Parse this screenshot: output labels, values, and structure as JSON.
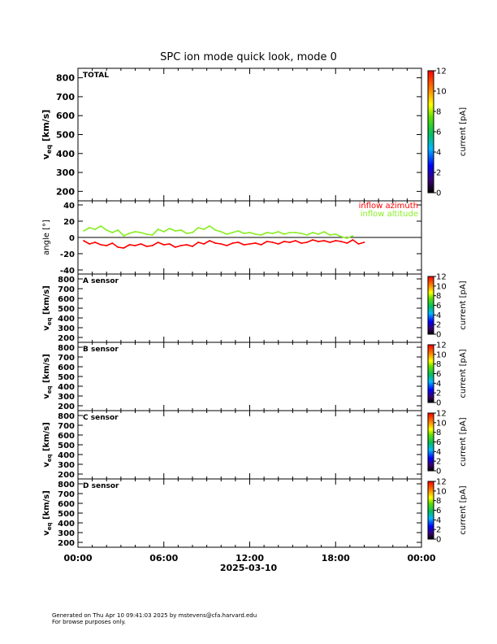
{
  "title": "SPC ion mode quick look, mode 0",
  "footer": {
    "line1": "Generated on Thu Apr 10 09:41:03 2025 by mstevens@cfa.harvard.edu",
    "line2": "For browse purposes only."
  },
  "colorbar": {
    "label": "current [pA]",
    "ticks_big": [
      "0",
      "2",
      "4",
      "6",
      "8",
      "10",
      "12"
    ],
    "ticks_small": [
      "0",
      "2",
      "4",
      "6",
      "8",
      "10",
      "12"
    ],
    "range": [
      0,
      12
    ]
  },
  "x_axis": {
    "date": "2025-03-10",
    "ticks": [
      "00:00",
      "06:00",
      "12:00",
      "18:00",
      "00:00"
    ]
  },
  "legend": {
    "azimuth": "inflow azimuth",
    "altitude": "inflow altitude",
    "azimuth_color": "#ff0000",
    "altitude_color": "#88ee22"
  },
  "chart_data": [
    {
      "type": "heatmap",
      "panel": "TOTAL",
      "label": "TOTAL",
      "ylabel": "v_eq [km/s]",
      "ylim": [
        150,
        850
      ],
      "yticks": [
        "200",
        "300",
        "400",
        "500",
        "600",
        "700",
        "800"
      ],
      "xlim_hours": [
        0,
        24
      ],
      "values": []
    },
    {
      "type": "scatter",
      "panel": "angle",
      "ylabel": "angle [°]",
      "ylim": [
        -45,
        45
      ],
      "yticks": [
        "-40",
        "-20",
        "0",
        "20",
        "40"
      ],
      "xlim_hours": [
        0,
        24
      ],
      "series": [
        {
          "name": "inflow altitude",
          "color": "#88ee22",
          "x": [
            0.4,
            0.8,
            1.2,
            1.6,
            2.0,
            2.4,
            2.8,
            3.2,
            3.6,
            4.0,
            4.4,
            4.8,
            5.2,
            5.6,
            6.0,
            6.4,
            6.8,
            7.2,
            7.6,
            8.0,
            8.4,
            8.8,
            9.2,
            9.6,
            10.0,
            10.4,
            10.8,
            11.2,
            11.6,
            12.0,
            12.4,
            12.8,
            13.2,
            13.6,
            14.0,
            14.4,
            14.8,
            15.2,
            15.6,
            16.0,
            16.4,
            16.8,
            17.2,
            17.6,
            18.0,
            18.4,
            18.8,
            19.2
          ],
          "values": [
            8,
            12,
            10,
            14,
            9,
            6,
            9,
            2,
            5,
            7,
            6,
            4,
            3,
            10,
            7,
            11,
            8,
            9,
            5,
            6,
            12,
            10,
            14,
            9,
            7,
            4,
            6,
            8,
            5,
            6,
            4,
            3,
            6,
            5,
            7,
            4,
            6,
            6,
            5,
            3,
            6,
            4,
            7,
            3,
            4,
            1,
            -1,
            2
          ]
        },
        {
          "name": "inflow azimuth",
          "color": "#ff0000",
          "x": [
            0.4,
            0.8,
            1.2,
            1.6,
            2.0,
            2.4,
            2.8,
            3.2,
            3.6,
            4.0,
            4.4,
            4.8,
            5.2,
            5.6,
            6.0,
            6.4,
            6.8,
            7.2,
            7.6,
            8.0,
            8.4,
            8.8,
            9.2,
            9.6,
            10.0,
            10.4,
            10.8,
            11.2,
            11.6,
            12.0,
            12.4,
            12.8,
            13.2,
            13.6,
            14.0,
            14.4,
            14.8,
            15.2,
            15.6,
            16.0,
            16.4,
            16.8,
            17.2,
            17.6,
            18.0,
            18.4,
            18.8,
            19.2,
            19.6,
            20.0
          ],
          "values": [
            -4,
            -8,
            -6,
            -9,
            -10,
            -7,
            -12,
            -13,
            -9,
            -10,
            -8,
            -11,
            -10,
            -6,
            -9,
            -8,
            -12,
            -10,
            -9,
            -11,
            -6,
            -8,
            -4,
            -7,
            -8,
            -10,
            -7,
            -6,
            -9,
            -8,
            -7,
            -9,
            -5,
            -6,
            -8,
            -5,
            -6,
            -4,
            -7,
            -6,
            -3,
            -5,
            -4,
            -6,
            -4,
            -5,
            -7,
            -3,
            -8,
            -6
          ]
        }
      ]
    },
    {
      "type": "heatmap",
      "panel": "A sensor",
      "label": "A sensor",
      "ylabel": "v_eq [km/s]",
      "ylim": [
        150,
        850
      ],
      "yticks": [
        "200",
        "300",
        "400",
        "500",
        "600",
        "700",
        "800"
      ],
      "xlim_hours": [
        0,
        24
      ],
      "values": []
    },
    {
      "type": "heatmap",
      "panel": "B sensor",
      "label": "B sensor",
      "ylabel": "v_eq [km/s]",
      "ylim": [
        150,
        850
      ],
      "yticks": [
        "200",
        "300",
        "400",
        "500",
        "600",
        "700",
        "800"
      ],
      "xlim_hours": [
        0,
        24
      ],
      "values": []
    },
    {
      "type": "heatmap",
      "panel": "C sensor",
      "label": "C sensor",
      "ylabel": "v_eq [km/s]",
      "ylim": [
        150,
        850
      ],
      "yticks": [
        "200",
        "300",
        "400",
        "500",
        "600",
        "700",
        "800"
      ],
      "xlim_hours": [
        0,
        24
      ],
      "values": []
    },
    {
      "type": "heatmap",
      "panel": "D sensor",
      "label": "D sensor",
      "ylabel": "v_eq [km/s]",
      "ylim": [
        150,
        850
      ],
      "yticks": [
        "200",
        "300",
        "400",
        "500",
        "600",
        "700",
        "800"
      ],
      "xlim_hours": [
        0,
        24
      ],
      "values": []
    }
  ]
}
